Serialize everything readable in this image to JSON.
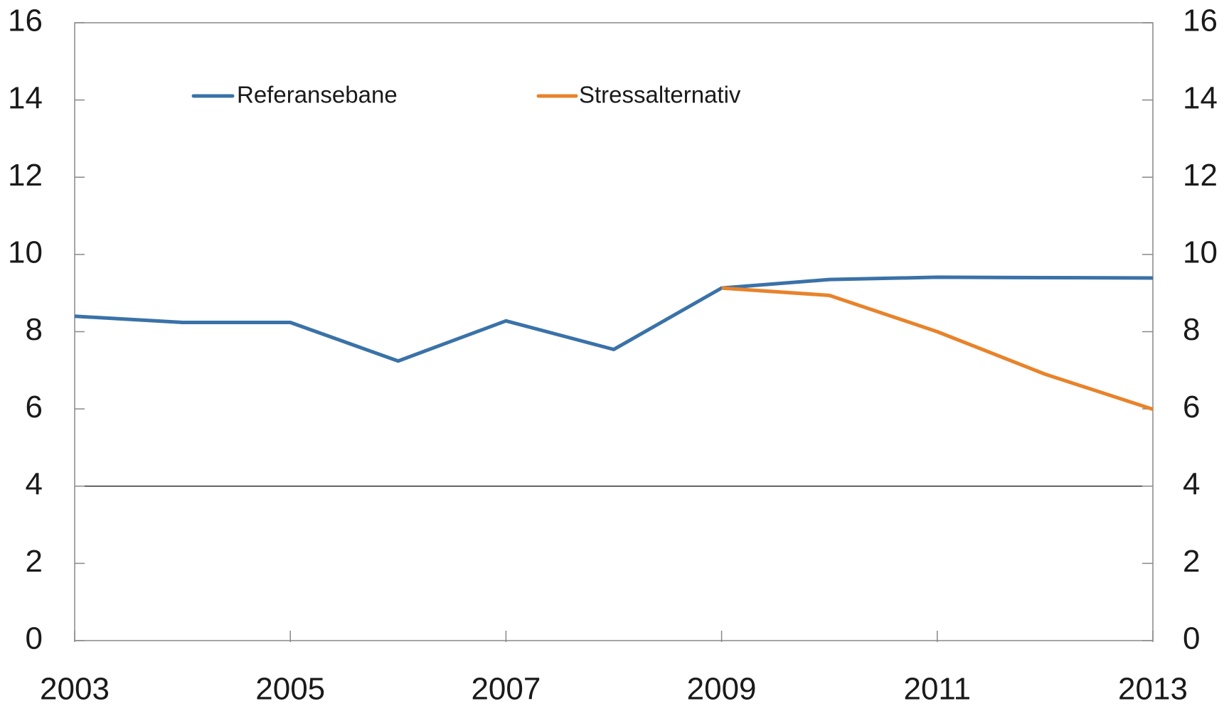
{
  "chart_data": {
    "type": "line",
    "x": [
      2003,
      2004,
      2005,
      2006,
      2007,
      2008,
      2009,
      2010,
      2011,
      2012,
      2013
    ],
    "series": [
      {
        "name": "Referansebane",
        "color": "#3a72a8",
        "values": [
          8.4,
          8.24,
          8.24,
          7.24,
          8.28,
          7.54,
          9.13,
          9.35,
          9.41,
          9.4,
          9.39
        ]
      },
      {
        "name": "Stressalternativ",
        "color": "#e8832a",
        "values": [
          null,
          null,
          null,
          null,
          null,
          null,
          9.13,
          8.94,
          8.0,
          6.9,
          5.99
        ]
      }
    ],
    "xlim": [
      2003,
      2013
    ],
    "xticks": [
      2003,
      2005,
      2007,
      2009,
      2011,
      2013
    ],
    "ylim": [
      0,
      16
    ],
    "yticks": [
      0,
      2,
      4,
      6,
      8,
      10,
      12,
      14,
      16
    ],
    "y2lim": [
      0,
      16
    ],
    "y2ticks": [
      0,
      2,
      4,
      6,
      8,
      10,
      12,
      14,
      16
    ],
    "hlines": [
      4
    ]
  }
}
